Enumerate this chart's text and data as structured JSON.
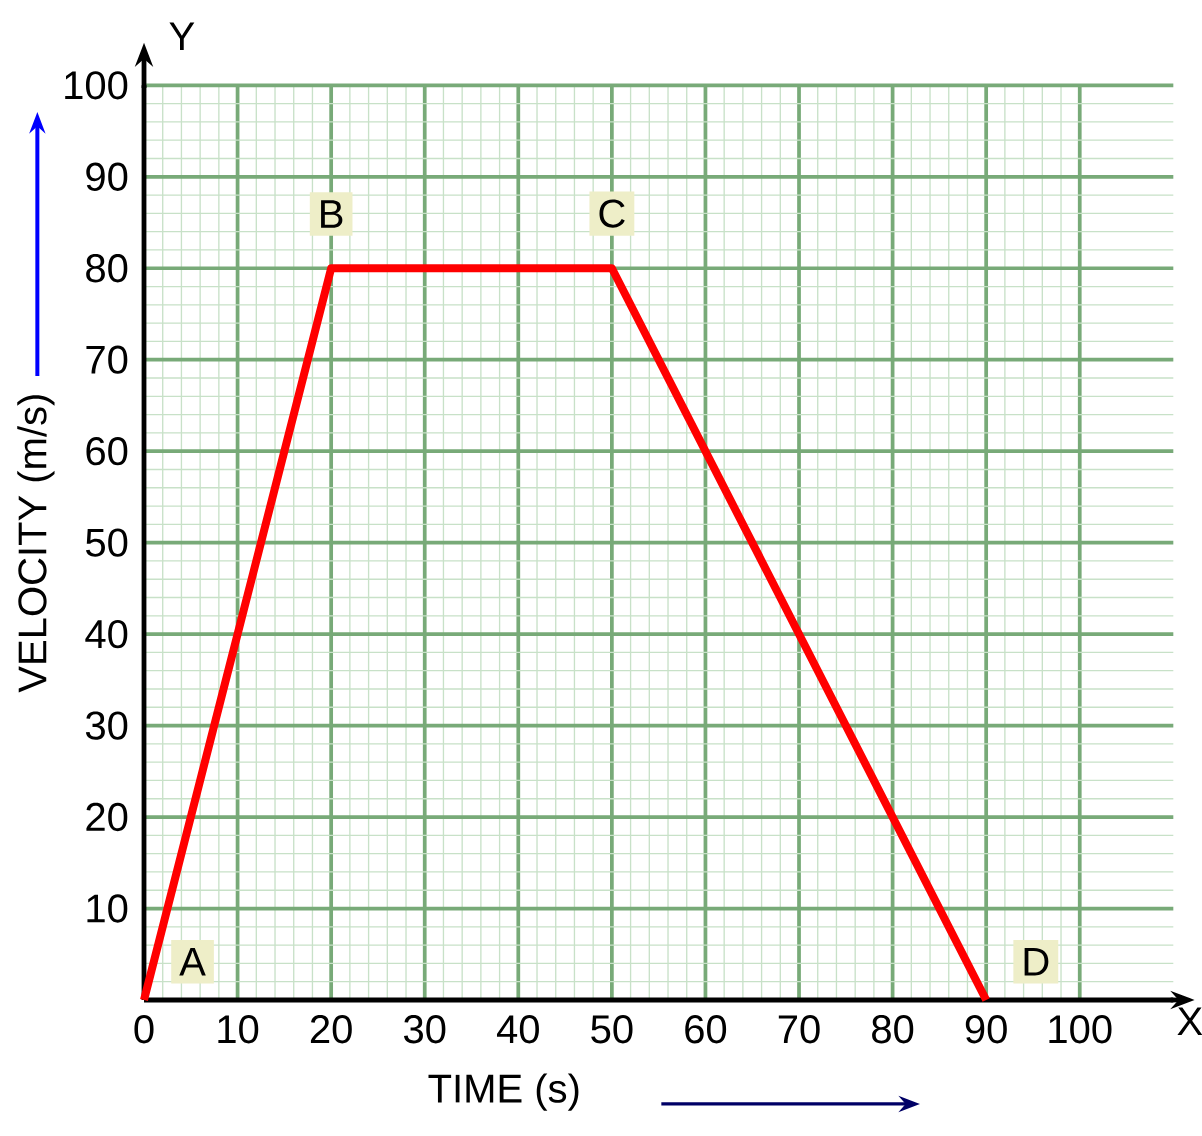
{
  "chart_data": {
    "type": "line",
    "xlabel": "TIME (s)",
    "ylabel": "VELOCITY (m/s)",
    "x": [
      0,
      20,
      50,
      90
    ],
    "series": [
      {
        "color": "#ff0000",
        "values": [
          0,
          80,
          80,
          0
        ]
      }
    ],
    "xlim": [
      0,
      110
    ],
    "ylim": [
      0,
      100
    ],
    "xticks": [
      0,
      10,
      20,
      30,
      40,
      50,
      60,
      70,
      80,
      90,
      100
    ],
    "yticks": [
      {
        "value": 0,
        "label": null
      },
      10,
      20,
      30,
      40,
      50,
      60,
      70,
      80,
      90,
      100
    ],
    "grid": true,
    "marker": "none",
    "line_style": "solid",
    "annotations": [
      {
        "text": "A",
        "x": 0,
        "y": 0
      },
      {
        "text": "B",
        "x": 20,
        "y": 80
      },
      {
        "text": "C",
        "x": 50,
        "y": 80
      },
      {
        "text": "D",
        "x": 90,
        "y": 0
      },
      "X",
      "Y"
    ]
  }
}
